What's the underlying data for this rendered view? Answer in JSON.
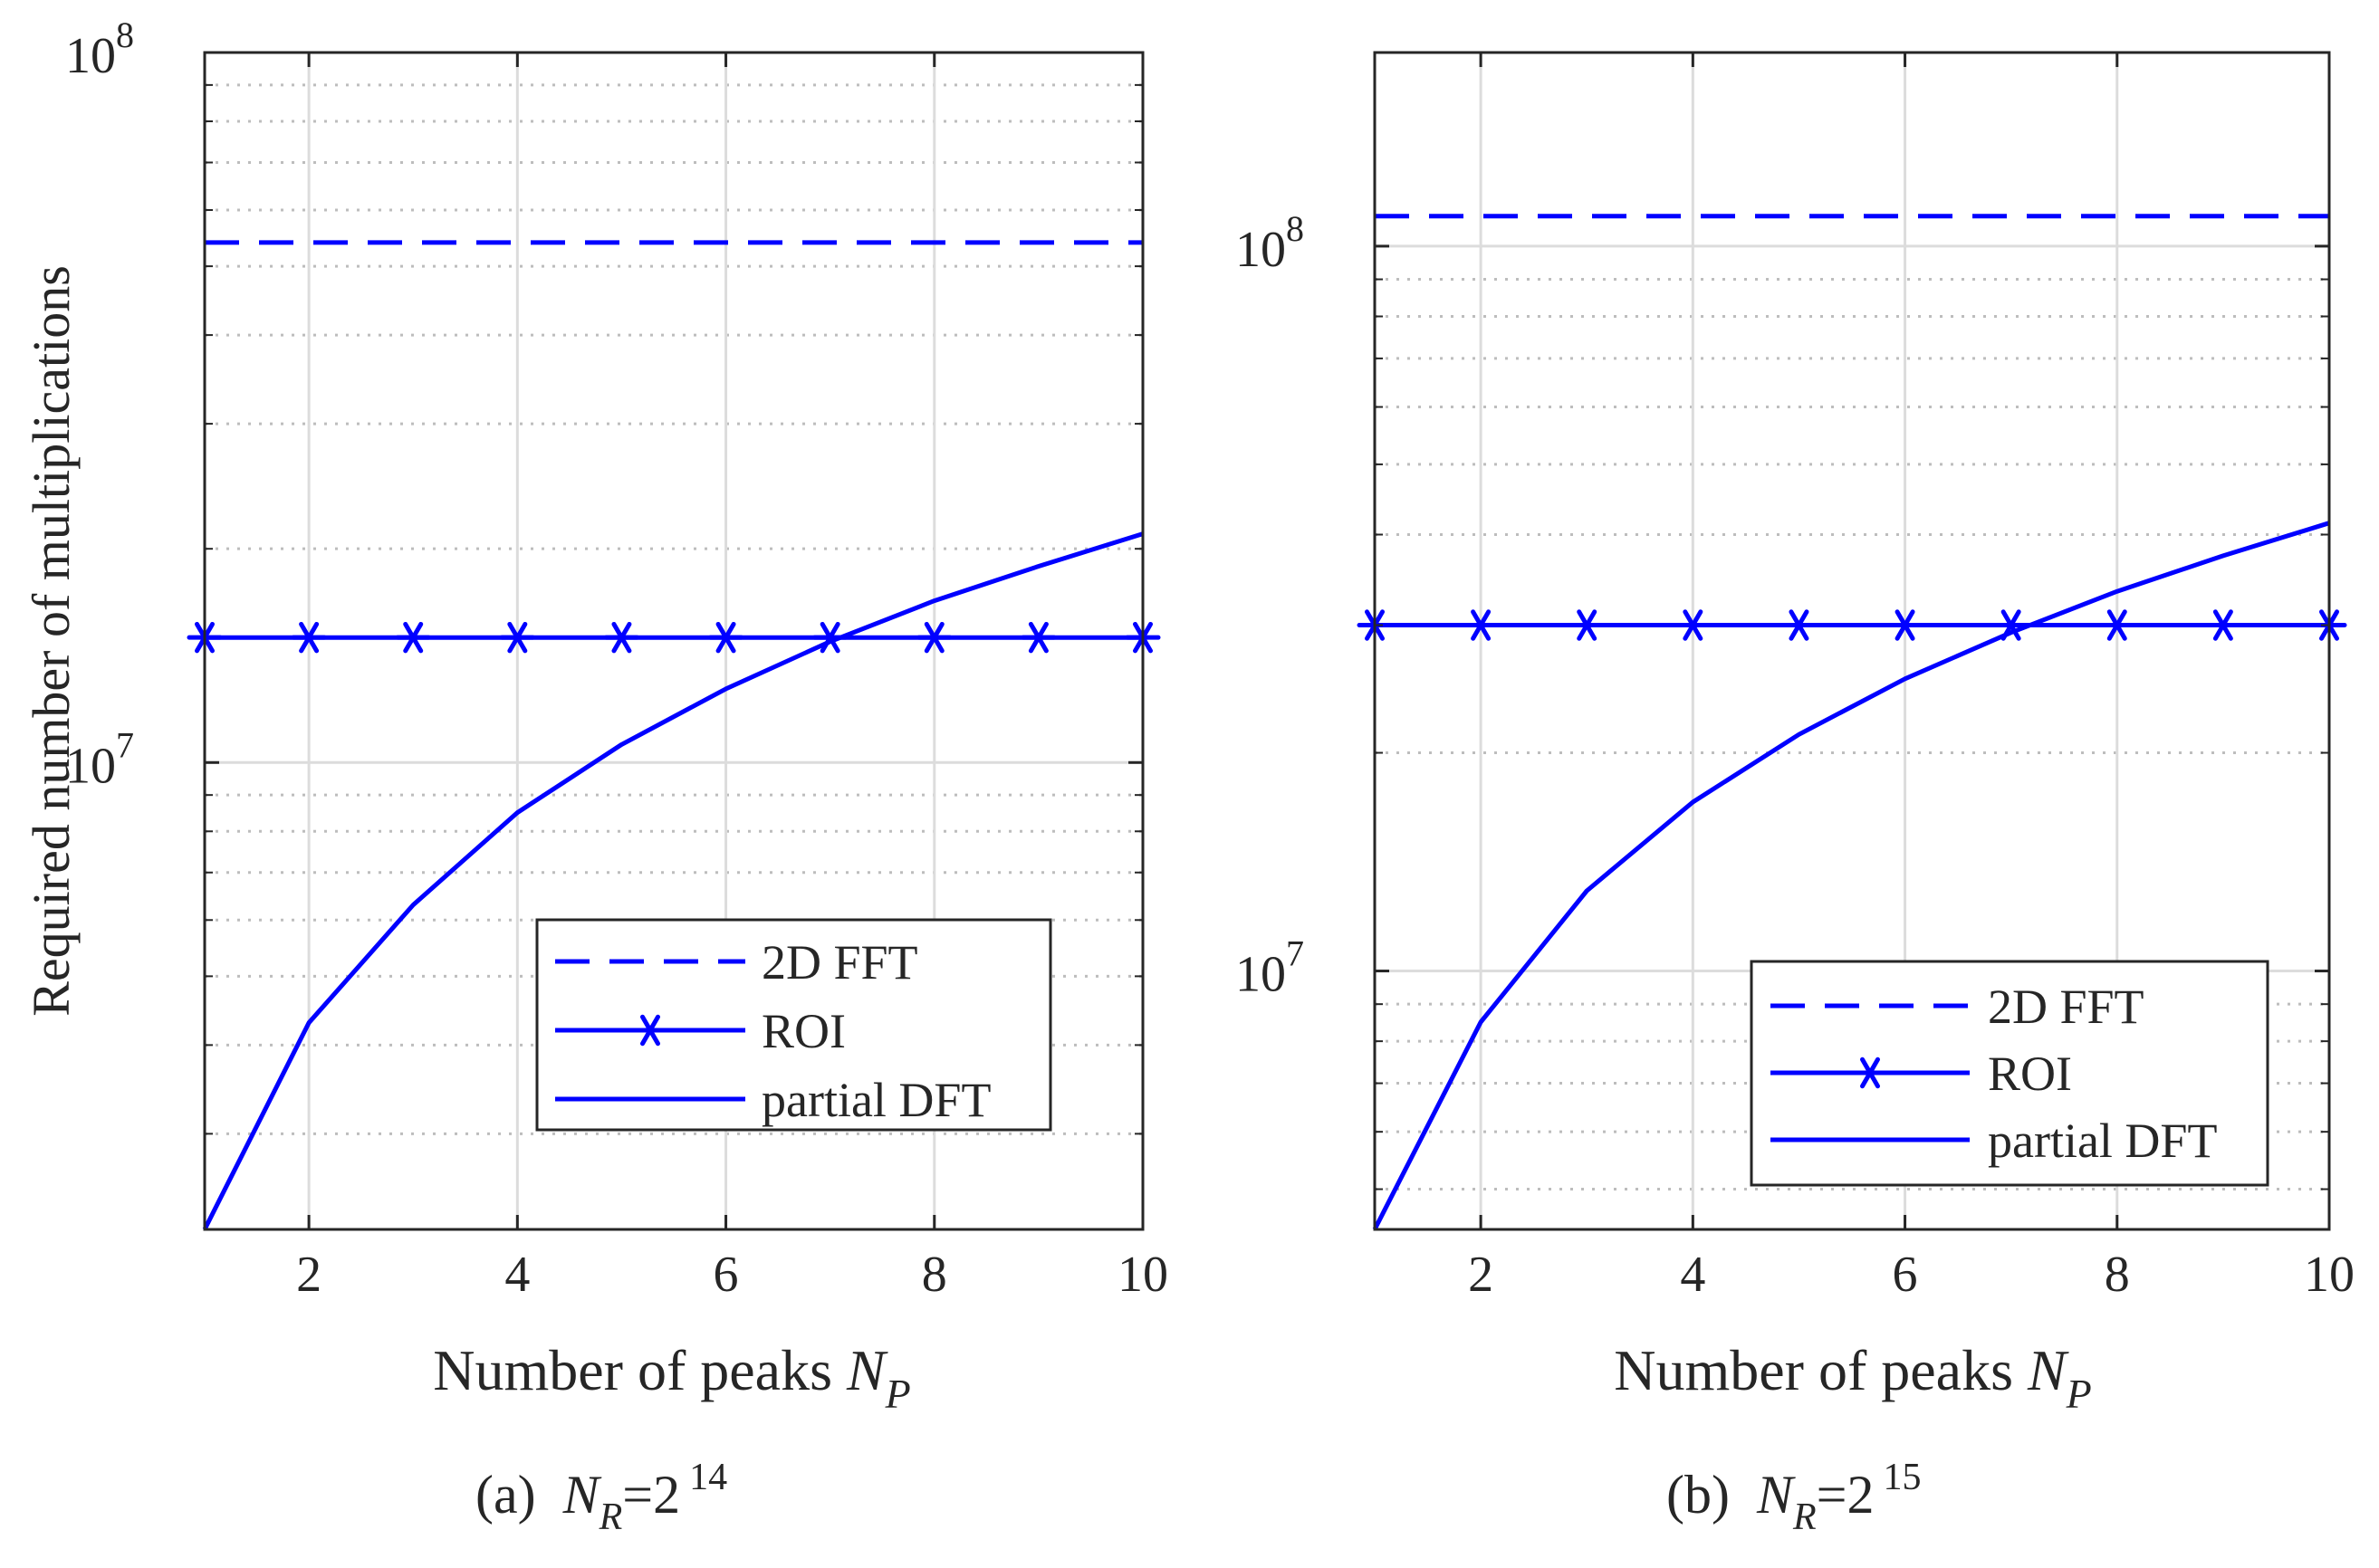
{
  "chart_data": [
    {
      "type": "line",
      "scale": "log-y",
      "panel_label": "(a)",
      "caption_var": "N",
      "caption_sub": "R",
      "caption_eq": "=2",
      "caption_exp": "14",
      "xlabel_text": "Number of peaks ",
      "xlabel_var": "N",
      "xlabel_sub": "P",
      "ylabel": "Required number of multiplications",
      "xlim": [
        1,
        10
      ],
      "ylim": [
        2200000.0,
        100000000.0
      ],
      "xticks": [
        2,
        4,
        6,
        8,
        10
      ],
      "yticks": [
        {
          "value": 10000000.0,
          "base": "10",
          "exp": "7"
        },
        {
          "value": 100000000.0,
          "base": "10",
          "exp": "8"
        }
      ],
      "x": [
        1,
        2,
        3,
        4,
        5,
        6,
        7,
        8,
        9,
        10
      ],
      "series": [
        {
          "name": "2D FFT",
          "style": "dashed",
          "values": [
            54000000.0,
            54000000.0,
            54000000.0,
            54000000.0,
            54000000.0,
            54000000.0,
            54000000.0,
            54000000.0,
            54000000.0,
            54000000.0
          ]
        },
        {
          "name": "ROI",
          "style": "star",
          "values": [
            15000000.0,
            15000000.0,
            15000000.0,
            15000000.0,
            15000000.0,
            15000000.0,
            15000000.0,
            15000000.0,
            15000000.0,
            15000000.0
          ]
        },
        {
          "name": "partial DFT",
          "style": "solid",
          "values": [
            2200000.0,
            4300000.0,
            6300000.0,
            8500000.0,
            10600000.0,
            12700000.0,
            14800000.0,
            16900000.0,
            18900000.0,
            21000000.0
          ]
        }
      ],
      "legend": [
        "2D FFT",
        "ROI",
        "partial DFT"
      ],
      "legend_position": "lower-right"
    },
    {
      "type": "line",
      "scale": "log-y",
      "panel_label": "(b)",
      "caption_var": "N",
      "caption_sub": "R",
      "caption_eq": "=2",
      "caption_exp": "15",
      "xlabel_text": "Number of peaks ",
      "xlabel_var": "N",
      "xlabel_sub": "P",
      "ylabel": "",
      "xlim": [
        1,
        10
      ],
      "ylim": [
        4400000.0,
        185000000.0
      ],
      "xticks": [
        2,
        4,
        6,
        8,
        10
      ],
      "yticks": [
        {
          "value": 10000000.0,
          "base": "10",
          "exp": "7"
        },
        {
          "value": 100000000.0,
          "base": "10",
          "exp": "8"
        }
      ],
      "x": [
        1,
        2,
        3,
        4,
        5,
        6,
        7,
        8,
        9,
        10
      ],
      "series": [
        {
          "name": "2D FFT",
          "style": "dashed",
          "values": [
            110000000.0,
            110000000.0,
            110000000.0,
            110000000.0,
            110000000.0,
            110000000.0,
            110000000.0,
            110000000.0,
            110000000.0,
            110000000.0
          ]
        },
        {
          "name": "ROI",
          "style": "star",
          "values": [
            30000000.0,
            30000000.0,
            30000000.0,
            30000000.0,
            30000000.0,
            30000000.0,
            30000000.0,
            30000000.0,
            30000000.0,
            30000000.0
          ]
        },
        {
          "name": "partial DFT",
          "style": "solid",
          "values": [
            4400000.0,
            8500000.0,
            12900000.0,
            17100000.0,
            21200000.0,
            25300000.0,
            29300000.0,
            33400000.0,
            37400000.0,
            41500000.0
          ]
        }
      ],
      "legend": [
        "2D FFT",
        "ROI",
        "partial DFT"
      ],
      "legend_position": "lower-right"
    }
  ],
  "colors": {
    "series": "#0000ff",
    "axes": "#262626",
    "grid_major": "#dcdcdc",
    "grid_minor": "#bdbdbd"
  }
}
